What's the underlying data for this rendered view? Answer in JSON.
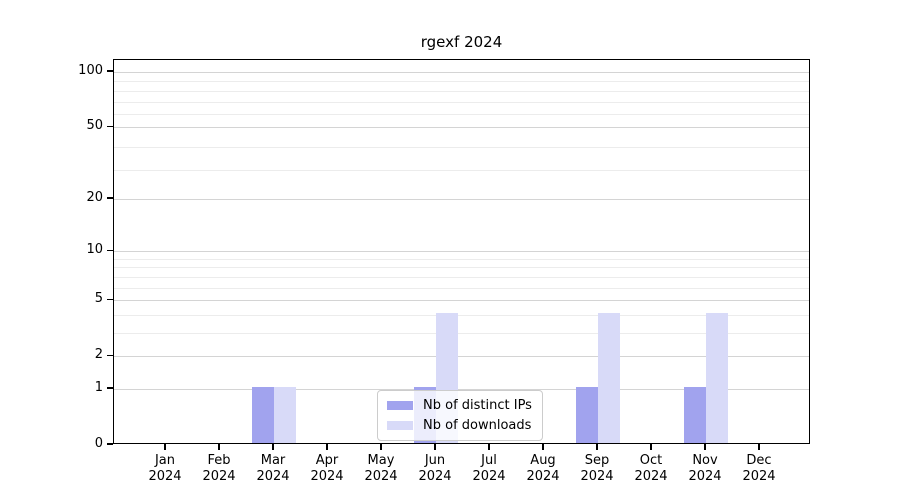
{
  "chart_data": {
    "type": "bar",
    "title": "rgexf 2024",
    "categories": [
      {
        "month": "Jan",
        "year": "2024"
      },
      {
        "month": "Feb",
        "year": "2024"
      },
      {
        "month": "Mar",
        "year": "2024"
      },
      {
        "month": "Apr",
        "year": "2024"
      },
      {
        "month": "May",
        "year": "2024"
      },
      {
        "month": "Jun",
        "year": "2024"
      },
      {
        "month": "Jul",
        "year": "2024"
      },
      {
        "month": "Aug",
        "year": "2024"
      },
      {
        "month": "Sep",
        "year": "2024"
      },
      {
        "month": "Oct",
        "year": "2024"
      },
      {
        "month": "Nov",
        "year": "2024"
      },
      {
        "month": "Dec",
        "year": "2024"
      }
    ],
    "series": [
      {
        "name": "Nb of distinct IPs",
        "color": "#a1a3ee",
        "values": [
          0,
          0,
          1,
          0,
          0,
          1,
          0,
          0,
          1,
          0,
          1,
          0
        ]
      },
      {
        "name": "Nb of downloads",
        "color": "#d8daf8",
        "values": [
          0,
          0,
          1,
          0,
          0,
          4,
          0,
          0,
          4,
          0,
          4,
          0
        ]
      }
    ],
    "y_axis": {
      "scale": "log1p",
      "ticks": [
        0,
        1,
        2,
        5,
        10,
        20,
        50,
        100
      ],
      "minor_gridlines": [
        3,
        4,
        6,
        7,
        8,
        9,
        29,
        39,
        59,
        69,
        79,
        89
      ],
      "min": 0,
      "max": 100
    },
    "grid": true,
    "legend_position": "bottom-center",
    "colors": {
      "major_grid": "#d4d4d4",
      "minor_grid": "#ececec",
      "axis": "#000000",
      "background": "#ffffff"
    }
  }
}
